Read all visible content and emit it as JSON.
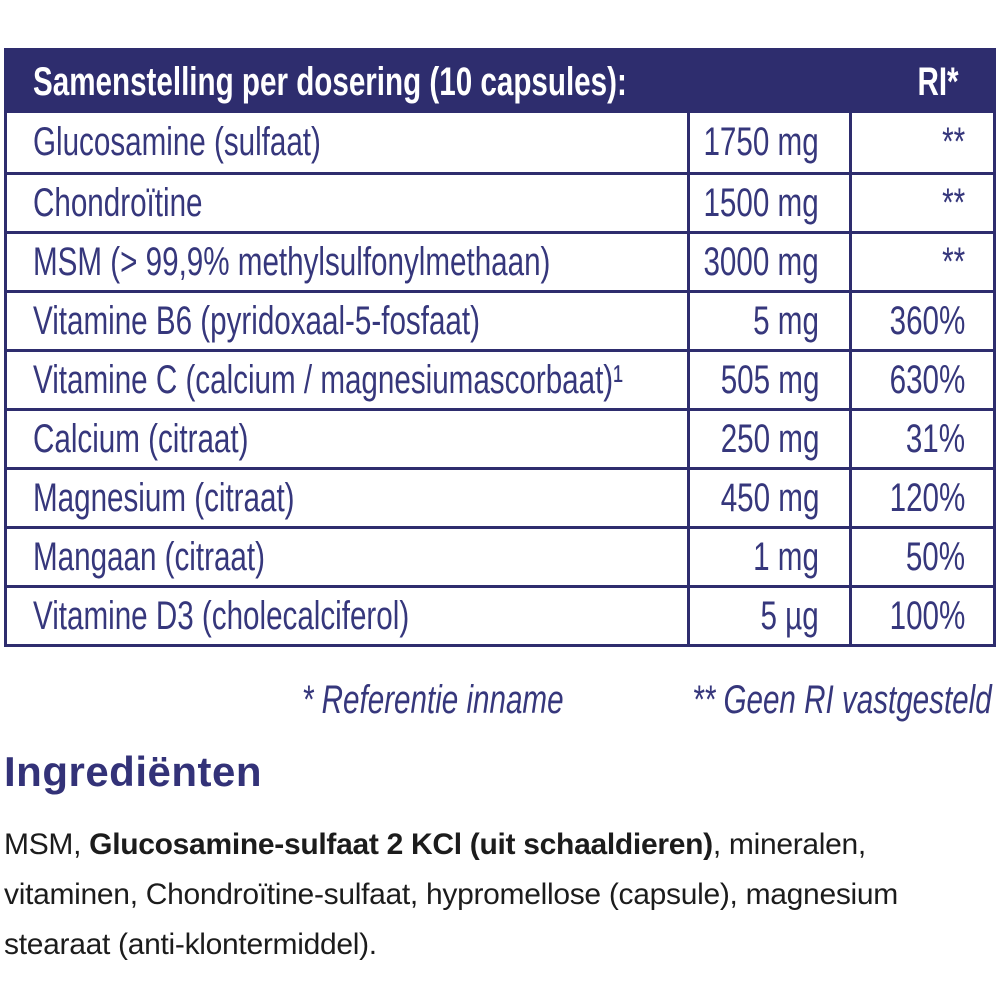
{
  "table": {
    "header": {
      "title": "Samenstelling per dosering (10 capsules):",
      "ri_label": "RI*"
    },
    "rows": [
      {
        "name": "Glucosamine (sulfaat)",
        "amount": "1750 mg",
        "ri": "**"
      },
      {
        "name": "Chondroïtine",
        "amount": "1500 mg",
        "ri": "**"
      },
      {
        "name": "MSM (> 99,9% methylsulfonylmethaan)",
        "amount": "3000 mg",
        "ri": "**"
      },
      {
        "name": "Vitamine B6 (pyridoxaal-5-fosfaat)",
        "amount": "5 mg",
        "ri": "360%"
      },
      {
        "name": "Vitamine C (calcium / magnesiumascorbaat)¹",
        "amount": "505 mg",
        "ri": "630%"
      },
      {
        "name": "Calcium (citraat)",
        "amount": "250 mg",
        "ri": "31%"
      },
      {
        "name": "Magnesium (citraat)",
        "amount": "450 mg",
        "ri": "120%"
      },
      {
        "name": "Mangaan (citraat)",
        "amount": "1 mg",
        "ri": "50%"
      },
      {
        "name": "Vitamine D3 (cholecalciferol)",
        "amount": "5 µg",
        "ri": "100%"
      }
    ]
  },
  "footnotes": {
    "reference": "* Referentie inname",
    "no_ri": "** Geen RI vastgesteld"
  },
  "ingredients": {
    "heading": "Ingrediënten",
    "lines": [
      [
        {
          "text": "MSM, ",
          "bold": false
        },
        {
          "text": "Glucosamine-sulfaat 2 KCl (uit schaaldieren)",
          "bold": true
        },
        {
          "text": ", mineralen,",
          "bold": false
        }
      ],
      [
        {
          "text": "vitaminen, Chondroïtine-sulfaat, hypromellose (capsule), magnesium",
          "bold": false
        }
      ],
      [
        {
          "text": "stearaat (anti-klontermiddel).",
          "bold": false
        }
      ]
    ]
  },
  "colors": {
    "header_background": "#2e2d6e",
    "table_border": "#2e2d6e",
    "table_text": "#36377c",
    "heading_text": "#333278",
    "body_text": "#1c1c1c",
    "header_text": "#ffffff"
  }
}
